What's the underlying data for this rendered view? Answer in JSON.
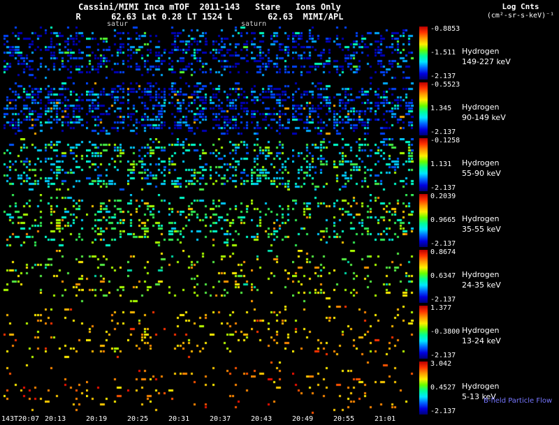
{
  "header": {
    "line1": "Cassini/MIMI Inca mTOF  2011-143   Stare   Ions Only",
    "line2": "R      62.63 Lat 0.28 LT 1524 L       62.63  MIMI/APL",
    "colorbar_title": "Log Cnts",
    "colorbar_units": "(cm²-sr-s-keV)⁻¹"
  },
  "annotations": [
    "satur",
    "saturn"
  ],
  "rows": [
    {
      "species": "Hydrogen",
      "energy": "149-227 keV",
      "cbar_top": "-0.8853",
      "cbar_mid": "-1.511",
      "cbar_bottom": "-2.137",
      "speckle": {
        "density": 0.28,
        "wide": 0.3,
        "palette": [
          {
            "c": "#0000bb",
            "w": 0.4
          },
          {
            "c": "#0044ff",
            "w": 0.3
          },
          {
            "c": "#00aaff",
            "w": 0.17
          },
          {
            "c": "#00ffbb",
            "w": 0.08
          },
          {
            "c": "#55ff33",
            "w": 0.05
          }
        ]
      }
    },
    {
      "species": "Hydrogen",
      "energy": "90-149 keV",
      "cbar_top": "-0.5523",
      "cbar_mid": "1.345",
      "cbar_bottom": "-2.137",
      "speckle": {
        "density": 0.4,
        "wide": 0.3,
        "palette": [
          {
            "c": "#0000bb",
            "w": 0.38
          },
          {
            "c": "#0044ff",
            "w": 0.3
          },
          {
            "c": "#00aaff",
            "w": 0.2
          },
          {
            "c": "#00ffcc",
            "w": 0.09
          },
          {
            "c": "#ffaa00",
            "w": 0.03
          }
        ]
      }
    },
    {
      "species": "Hydrogen",
      "energy": "55-90 keV",
      "cbar_top": "-0.1258",
      "cbar_mid": "1.131",
      "cbar_bottom": "-2.137",
      "speckle": {
        "density": 0.3,
        "wide": 0.25,
        "palette": [
          {
            "c": "#00ccff",
            "w": 0.28
          },
          {
            "c": "#00ffcc",
            "w": 0.24
          },
          {
            "c": "#44ee44",
            "w": 0.2
          },
          {
            "c": "#0055ff",
            "w": 0.16
          },
          {
            "c": "#aaff00",
            "w": 0.12
          }
        ]
      }
    },
    {
      "species": "Hydrogen",
      "energy": "35-55 keV",
      "cbar_top": "0.2039",
      "cbar_mid": "0.9665",
      "cbar_bottom": "-2.137",
      "speckle": {
        "density": 0.2,
        "wide": 0.2,
        "palette": [
          {
            "c": "#33ee55",
            "w": 0.3
          },
          {
            "c": "#00ffcc",
            "w": 0.22
          },
          {
            "c": "#aaff00",
            "w": 0.2
          },
          {
            "c": "#00ccff",
            "w": 0.15
          },
          {
            "c": "#ffcc00",
            "w": 0.1
          },
          {
            "c": "#ff8800",
            "w": 0.03
          }
        ]
      }
    },
    {
      "species": "Hydrogen",
      "energy": "24-35 keV",
      "cbar_top": "0.8674",
      "cbar_mid": "0.6347",
      "cbar_bottom": "-2.137",
      "speckle": {
        "density": 0.13,
        "wide": 0.15,
        "palette": [
          {
            "c": "#55ee44",
            "w": 0.3
          },
          {
            "c": "#aaff00",
            "w": 0.28
          },
          {
            "c": "#ffee00",
            "w": 0.2
          },
          {
            "c": "#00ddaa",
            "w": 0.1
          },
          {
            "c": "#ff9900",
            "w": 0.12
          }
        ]
      }
    },
    {
      "species": "Hydrogen",
      "energy": "13-24 keV",
      "cbar_top": "1.377",
      "cbar_mid": "-0.3800",
      "cbar_bottom": "-2.137",
      "speckle": {
        "density": 0.09,
        "wide": 0.12,
        "palette": [
          {
            "c": "#ffee00",
            "w": 0.3
          },
          {
            "c": "#ffbb00",
            "w": 0.28
          },
          {
            "c": "#ff8800",
            "w": 0.22
          },
          {
            "c": "#bbff00",
            "w": 0.12
          },
          {
            "c": "#ff3300",
            "w": 0.08
          }
        ]
      }
    },
    {
      "species": "Hydrogen",
      "energy": "5-13 keV",
      "cbar_top": "3.042",
      "cbar_mid": "0.4527",
      "cbar_bottom": "-2.137",
      "speckle": {
        "density": 0.055,
        "wide": 0.12,
        "palette": [
          {
            "c": "#ff8800",
            "w": 0.32
          },
          {
            "c": "#ffcc00",
            "w": 0.25
          },
          {
            "c": "#ff5500",
            "w": 0.2
          },
          {
            "c": "#ffee00",
            "w": 0.15
          },
          {
            "c": "#ee1100",
            "w": 0.08
          }
        ]
      }
    }
  ],
  "time_labels": [
    "143T20:07",
    "20:13",
    "20:19",
    "20:25",
    "20:31",
    "20:37",
    "20:43",
    "20:49",
    "20:55",
    "21:01"
  ],
  "footer": {
    "bfield_label": "B-field Particle Flow"
  },
  "colors": {
    "background": "#000000",
    "text": "#ffffff",
    "annotation": "#cfcfcf",
    "bfield": "#7777ff"
  },
  "colorbar_gradient": [
    "#bb0000",
    "#ff3300",
    "#ff9900",
    "#ffee00",
    "#66ff00",
    "#00ff99",
    "#00e5ff",
    "#0066ff",
    "#0000dd",
    "#000077"
  ],
  "layout": {
    "panels_per_row": 10
  },
  "chart_data": {
    "type": "heatmap",
    "title": "Cassini/MIMI Inca mTOF 2011-143 Stare Ions Only",
    "subtitle": "R 62.63 Lat 0.28 LT 1524 L 62.63 MIMI/APL",
    "colorbar_label": "Log Cnts (cm²-sr-s-keV)⁻¹",
    "x": [
      "143T20:07",
      "20:13",
      "20:19",
      "20:25",
      "20:31",
      "20:37",
      "20:43",
      "20:49",
      "20:55",
      "21:01"
    ],
    "panels_per_row": 10,
    "legend_position": "right",
    "series": [
      {
        "name": "Hydrogen 149-227 keV",
        "scale_top": "-0.8853",
        "scale_mid": "-1.511",
        "scale_min": "-2.137"
      },
      {
        "name": "Hydrogen 90-149 keV",
        "scale_top": "-0.5523",
        "scale_mid": "1.345",
        "scale_min": "-2.137"
      },
      {
        "name": "Hydrogen 55-90 keV",
        "scale_top": "-0.1258",
        "scale_mid": "1.131",
        "scale_min": "-2.137"
      },
      {
        "name": "Hydrogen 35-55 keV",
        "scale_top": "0.2039",
        "scale_mid": "0.9665",
        "scale_min": "-2.137"
      },
      {
        "name": "Hydrogen 24-35 keV",
        "scale_top": "0.8674",
        "scale_mid": "0.6347",
        "scale_min": "-2.137"
      },
      {
        "name": "Hydrogen 13-24 keV",
        "scale_top": "1.377",
        "scale_mid": "-0.3800",
        "scale_min": "-2.137"
      },
      {
        "name": "Hydrogen 5-13 keV",
        "scale_top": "3.042",
        "scale_mid": "0.4527",
        "scale_min": "-2.137"
      }
    ]
  }
}
